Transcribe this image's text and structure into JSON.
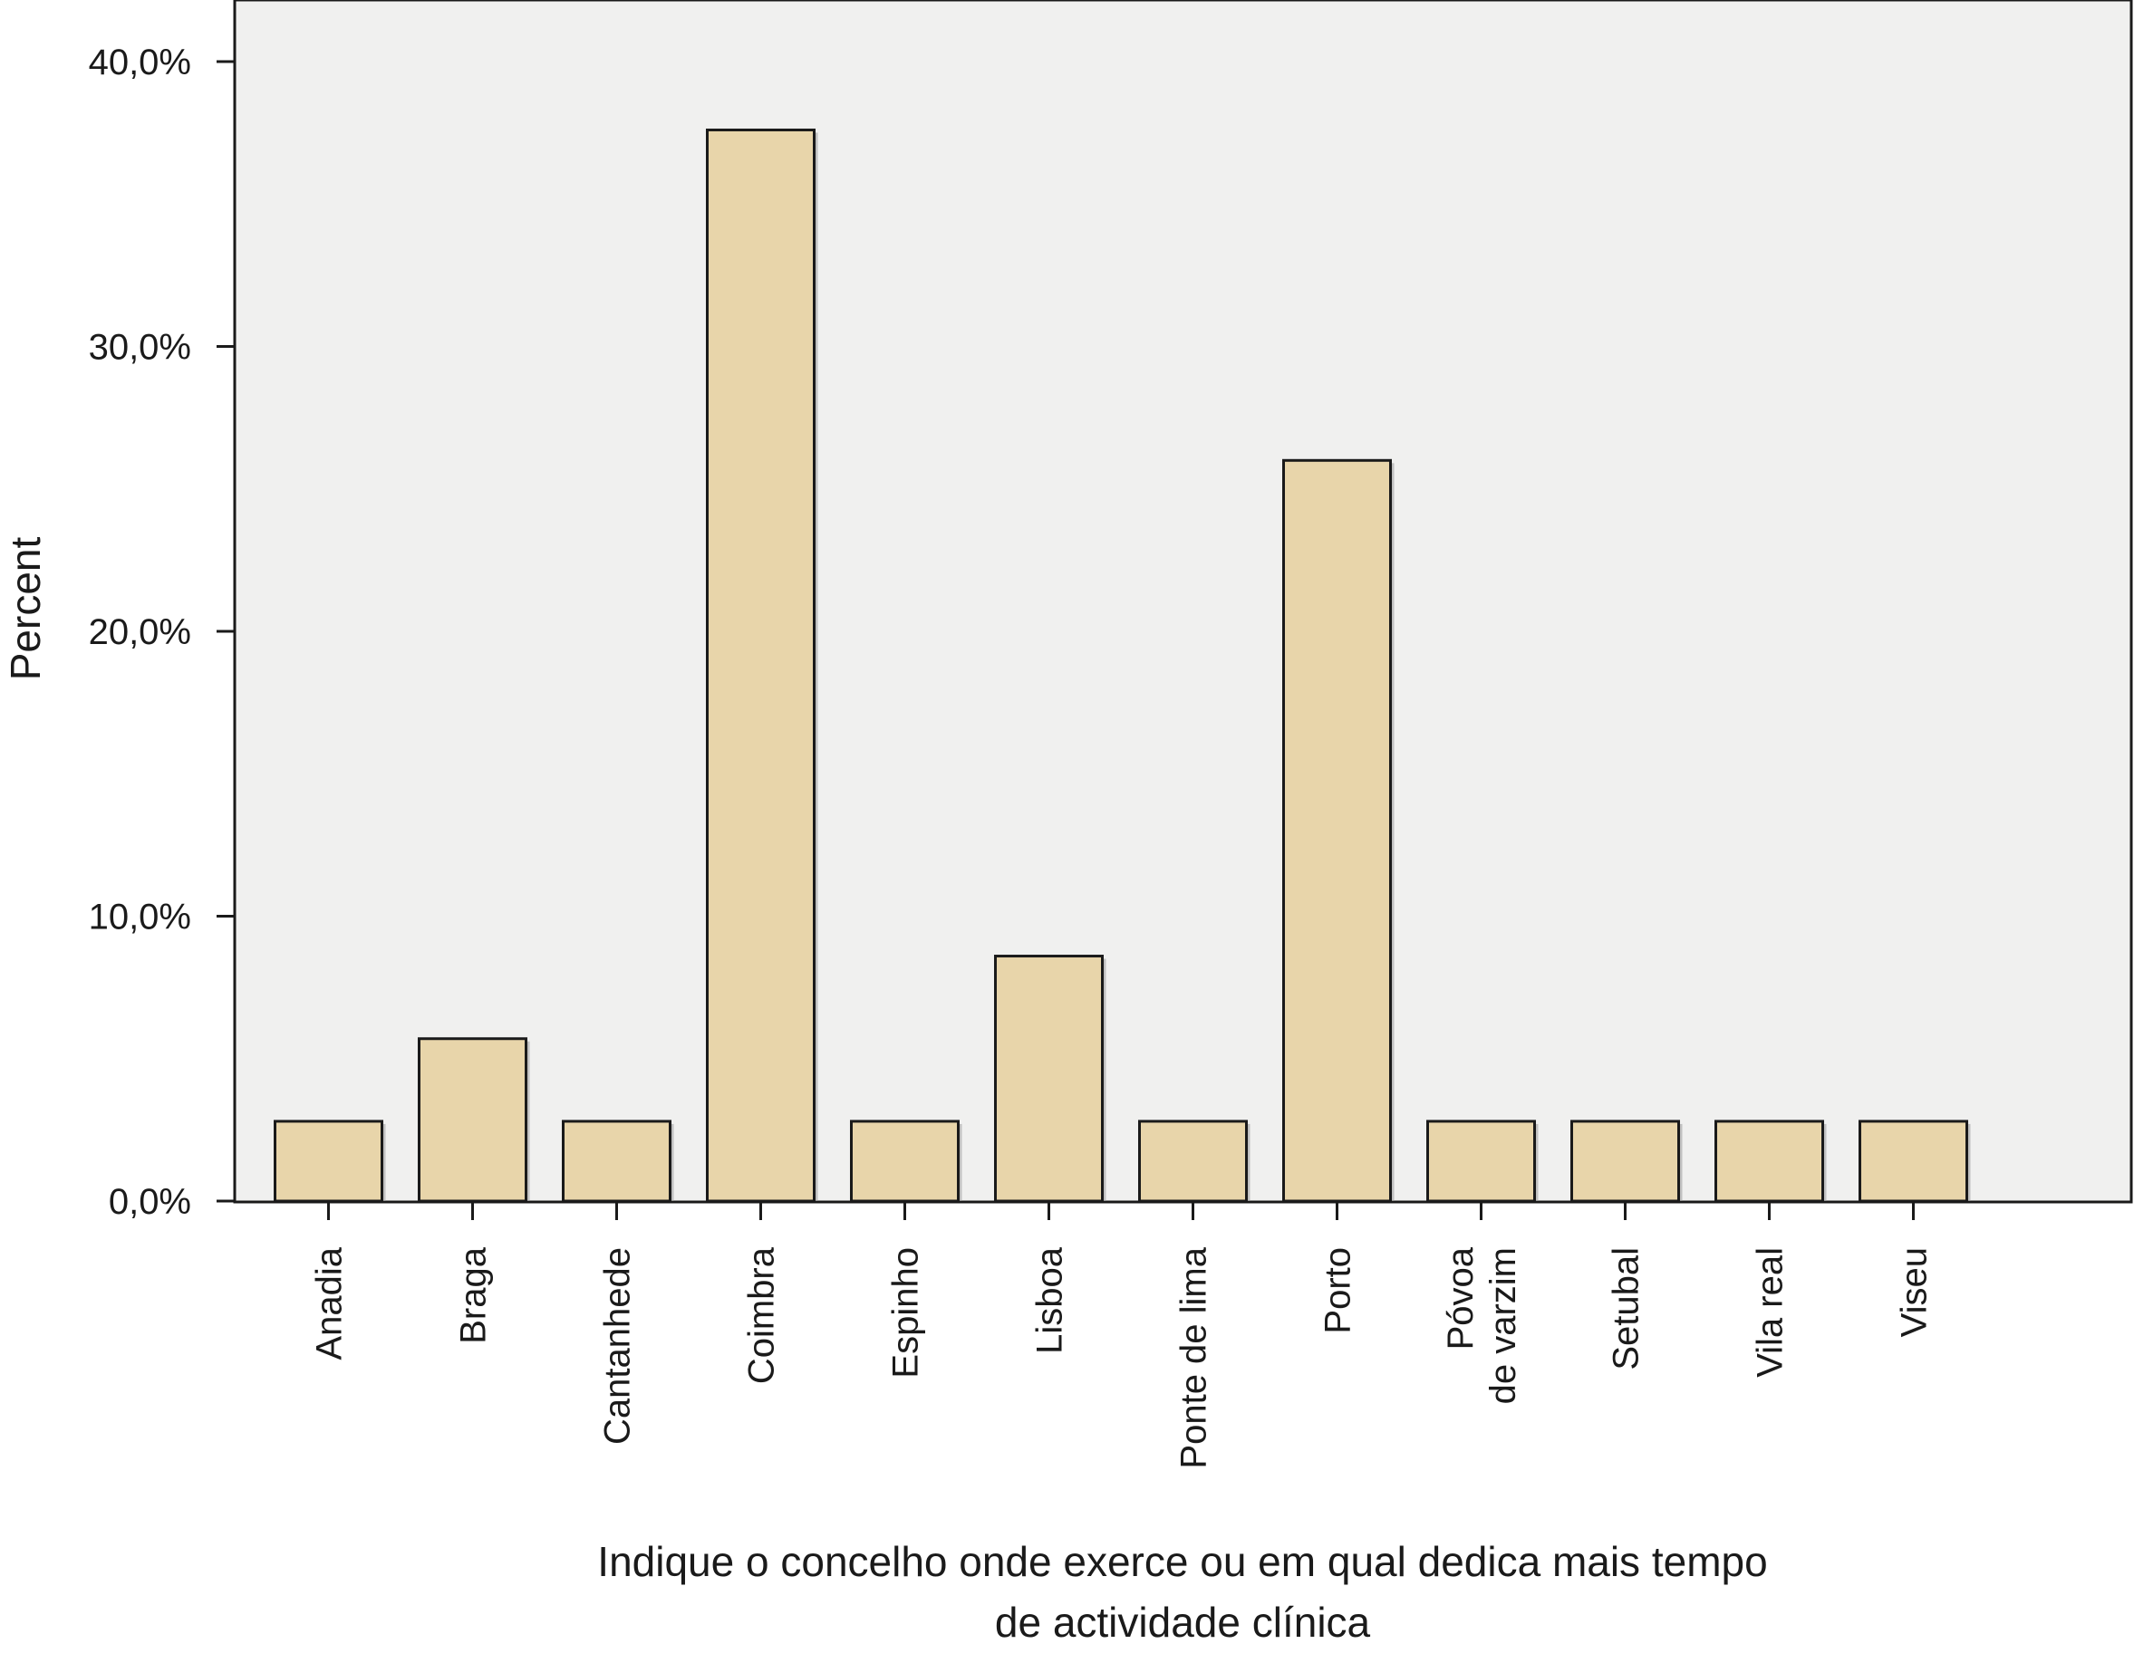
{
  "chart_data": {
    "type": "bar",
    "ylabel": "Percent",
    "xlabel_lines": [
      "Indique o concelho onde exerce ou em qual dedica mais tempo",
      "de actividade clínica"
    ],
    "y_ticks": [
      "0,0%",
      "10,0%",
      "20,0%",
      "30,0%",
      "40,0%"
    ],
    "y_tick_values": [
      0,
      10,
      20,
      30,
      40
    ],
    "ylim": [
      0,
      42
    ],
    "grid": false,
    "categories": [
      [
        "Anadia"
      ],
      [
        "Braga"
      ],
      [
        "Cantanhede"
      ],
      [
        "Coimbra"
      ],
      [
        "Espinho"
      ],
      [
        "Lisboa"
      ],
      [
        "Ponte de lima"
      ],
      [
        "Porto"
      ],
      [
        "Póvoa",
        "de varzim"
      ],
      [
        "Setubal"
      ],
      [
        "Vila real"
      ],
      [
        "Viseu"
      ]
    ],
    "values": [
      2.8,
      5.7,
      2.8,
      37.6,
      2.8,
      8.6,
      2.8,
      26.0,
      2.8,
      2.8,
      2.8,
      2.8
    ],
    "colors": {
      "plot_background": "#f0f0ef",
      "bar_fill": "#e8d5aa",
      "bar_stroke": "#1a1a1a",
      "axis": "#1a1a1a"
    }
  }
}
